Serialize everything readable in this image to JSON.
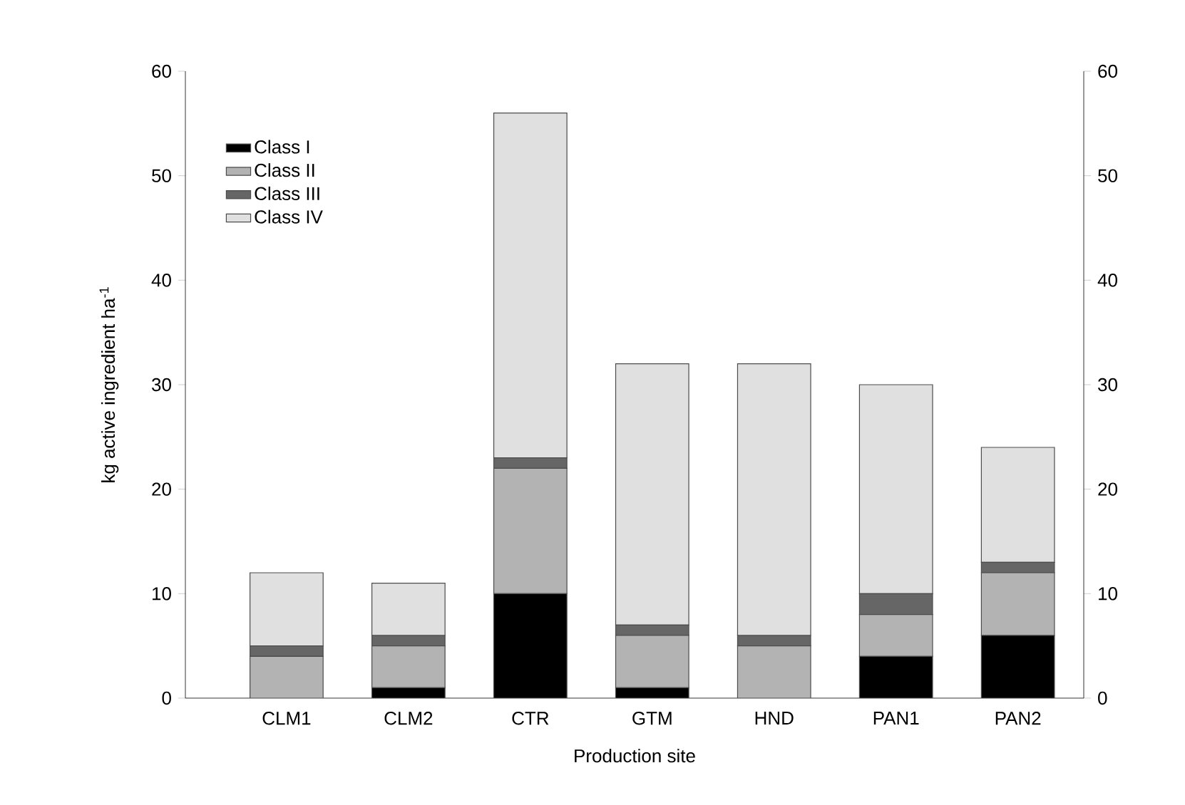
{
  "chart_data": {
    "type": "bar",
    "stacked": true,
    "xlabel": "Production site",
    "ylabel": "kg active ingredient ha$^{-1}$",
    "categories": [
      "CLM1",
      "CLM2",
      "CTR",
      "GTM",
      "HND",
      "PAN1",
      "PAN2"
    ],
    "series": [
      {
        "name": "Class I",
        "color": "#000000",
        "values": [
          0,
          1,
          10,
          1,
          0,
          4,
          6
        ]
      },
      {
        "name": "Class II",
        "color": "#b3b3b3",
        "values": [
          4,
          4,
          12,
          5,
          5,
          4,
          6
        ]
      },
      {
        "name": "Class III",
        "color": "#666666",
        "values": [
          1,
          1,
          1,
          1,
          1,
          2,
          1
        ]
      },
      {
        "name": "Class IV",
        "color": "#e0e0e0",
        "values": [
          7,
          5,
          33,
          25,
          26,
          20,
          11
        ]
      }
    ],
    "ylim": [
      0,
      60
    ],
    "yticks": [
      0,
      10,
      20,
      30,
      40,
      50,
      60
    ],
    "y2lim": [
      0,
      60
    ],
    "y2ticks": [
      0,
      10,
      20,
      30,
      40,
      50,
      60
    ],
    "legend": "top left",
    "grid": false
  }
}
